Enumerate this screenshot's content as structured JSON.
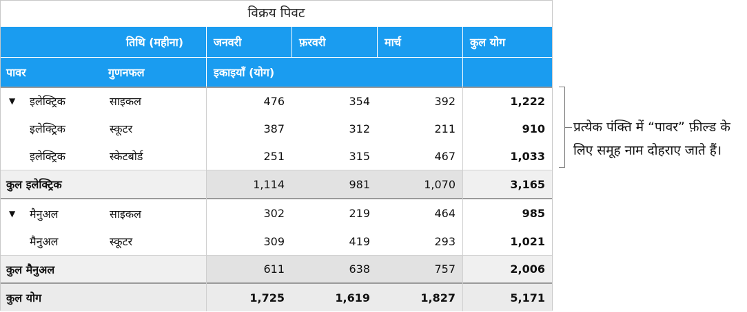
{
  "title": "विक्रय पिवट",
  "header1": {
    "label": "तिथि  (महीना)",
    "months": [
      "जनवरी",
      "फ़रवरी",
      "मार्च"
    ],
    "total": "कुल योग"
  },
  "header2": {
    "col1": "पावर",
    "col2": "गुणनफल",
    "values": "इकाइयाँ  (योग)"
  },
  "rows": [
    {
      "power": "इलेक्ट्रिक",
      "product": "साइकल",
      "jan": "476",
      "feb": "354",
      "mar": "392",
      "total": "1,222",
      "arrow": "▼"
    },
    {
      "power": "इलेक्ट्रिक",
      "product": "स्कूटर",
      "jan": "387",
      "feb": "312",
      "mar": "211",
      "total": "910"
    },
    {
      "power": "इलेक्ट्रिक",
      "product": "स्केटबोर्ड",
      "jan": "251",
      "feb": "315",
      "mar": "467",
      "total": "1,033"
    },
    {
      "label": "कुल इलेक्ट्रिक",
      "jan": "1,114",
      "feb": "981",
      "mar": "1,070",
      "total": "3,165"
    },
    {
      "power": "मैनुअल",
      "product": "साइकल",
      "jan": "302",
      "feb": "219",
      "mar": "464",
      "total": "985",
      "arrow": "▼"
    },
    {
      "power": "मैनुअल",
      "product": "स्कूटर",
      "jan": "309",
      "feb": "419",
      "mar": "293",
      "total": "1,021"
    },
    {
      "label": "कुल मैनुअल",
      "jan": "611",
      "feb": "638",
      "mar": "757",
      "total": "2,006"
    },
    {
      "label": "कुल योग",
      "jan": "1,725",
      "feb": "1,619",
      "mar": "1,827",
      "total": "5,171"
    }
  ],
  "callout": "प्रत्येक पंक्ति में “पावर” फ़ील्ड के लिए समूह नाम दोहराए जाते हैं।"
}
